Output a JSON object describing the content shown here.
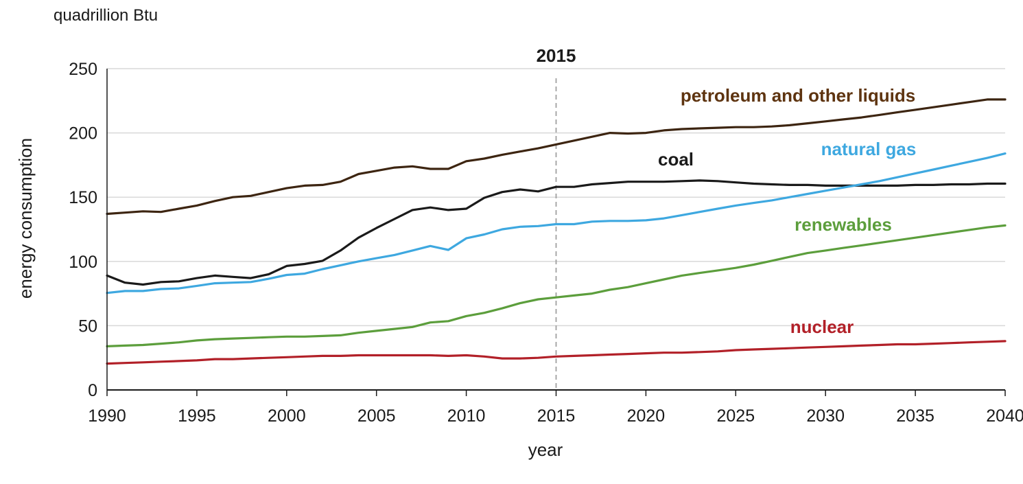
{
  "chart_data": {
    "type": "line",
    "unit_label": "quadrillion Btu",
    "ylabel": "energy consumption",
    "xlabel": "year",
    "xlim": [
      1990,
      2040
    ],
    "ylim": [
      0,
      250
    ],
    "x_ticks": [
      1990,
      1995,
      2000,
      2005,
      2010,
      2015,
      2020,
      2025,
      2030,
      2035,
      2040
    ],
    "y_ticks": [
      0,
      50,
      100,
      150,
      200,
      250
    ],
    "grid": true,
    "reference_line": {
      "x": 2015,
      "label": "2015"
    },
    "x": [
      1990,
      1991,
      1992,
      1993,
      1994,
      1995,
      1996,
      1997,
      1998,
      1999,
      2000,
      2001,
      2002,
      2003,
      2004,
      2005,
      2006,
      2007,
      2008,
      2009,
      2010,
      2011,
      2012,
      2013,
      2014,
      2015,
      2016,
      2017,
      2018,
      2019,
      2020,
      2021,
      2022,
      2023,
      2024,
      2025,
      2026,
      2027,
      2028,
      2029,
      2030,
      2031,
      2032,
      2033,
      2034,
      2035,
      2036,
      2037,
      2038,
      2039,
      2040
    ],
    "series": [
      {
        "name": "petroleum and other liquids",
        "color": "#5e3410",
        "line_color": "#3d2511",
        "values": [
          137,
          138,
          139,
          138.5,
          141,
          143.5,
          147,
          150,
          151,
          154,
          157,
          159,
          159.5,
          162,
          168,
          170.5,
          173,
          174,
          172,
          172,
          178,
          180,
          183,
          185.5,
          188,
          191,
          194,
          197,
          200,
          199.5,
          200,
          202,
          203,
          203.5,
          204,
          204.5,
          204.5,
          205,
          206,
          207.5,
          209,
          210.5,
          212,
          214,
          216,
          218,
          220,
          222,
          224,
          226,
          226
        ]
      },
      {
        "name": "coal",
        "color": "#1a1a1a",
        "line_color": "#1a1a1a",
        "values": [
          89,
          83.5,
          82,
          84,
          84.5,
          87,
          89,
          88,
          87,
          90,
          96.5,
          98,
          100.5,
          108.5,
          118.5,
          126,
          133,
          140,
          142,
          140,
          141,
          149.5,
          154,
          156,
          154.5,
          158,
          158,
          160,
          161,
          162,
          162,
          162,
          162.5,
          163,
          162.5,
          161.5,
          160.5,
          160,
          159.5,
          159.5,
          159,
          159,
          159,
          159,
          159,
          159.5,
          159.5,
          160,
          160,
          160.5,
          160.5
        ]
      },
      {
        "name": "natural gas",
        "color": "#3ea8e0",
        "line_color": "#3ea8e0",
        "values": [
          75.5,
          77,
          77,
          78.5,
          79,
          81,
          83,
          83.5,
          84,
          86.5,
          89.5,
          90.5,
          94,
          97,
          100,
          102.5,
          105,
          108.5,
          112,
          109,
          118,
          121,
          125,
          127,
          127.5,
          129,
          129,
          131,
          131.5,
          131.5,
          132,
          133.5,
          136,
          138.5,
          141,
          143.5,
          145.5,
          147.5,
          150,
          152.5,
          155,
          157.5,
          160,
          162.5,
          165.5,
          168.5,
          171.5,
          174.5,
          177.5,
          180.5,
          184
        ]
      },
      {
        "name": "renewables",
        "color": "#5c9e3c",
        "line_color": "#5c9e3c",
        "values": [
          34,
          34.5,
          35,
          36,
          37,
          38.5,
          39.5,
          40,
          40.5,
          41,
          41.5,
          41.5,
          42,
          42.5,
          44.5,
          46,
          47.5,
          49,
          52.5,
          53.5,
          57.5,
          60,
          63.5,
          67.5,
          70.5,
          72,
          73.5,
          75,
          78,
          80,
          83,
          86,
          89,
          91,
          93,
          95,
          97.5,
          100.5,
          103.5,
          106.5,
          108.5,
          110.5,
          112.5,
          114.5,
          116.5,
          118.5,
          120.5,
          122.5,
          124.5,
          126.5,
          128
        ]
      },
      {
        "name": "nuclear",
        "color": "#b22028",
        "line_color": "#b22028",
        "values": [
          20.5,
          21,
          21.5,
          22,
          22.5,
          23,
          24,
          24,
          24.5,
          25,
          25.5,
          26,
          26.5,
          26.5,
          27,
          27,
          27,
          27,
          27,
          26.5,
          27,
          26,
          24.5,
          24.5,
          25,
          26,
          26.5,
          27,
          27.5,
          28,
          28.5,
          29,
          29,
          29.5,
          30,
          31,
          31.5,
          32,
          32.5,
          33,
          33.5,
          34,
          34.5,
          35,
          35.5,
          35.5,
          36,
          36.5,
          37,
          37.5,
          38
        ]
      }
    ]
  }
}
